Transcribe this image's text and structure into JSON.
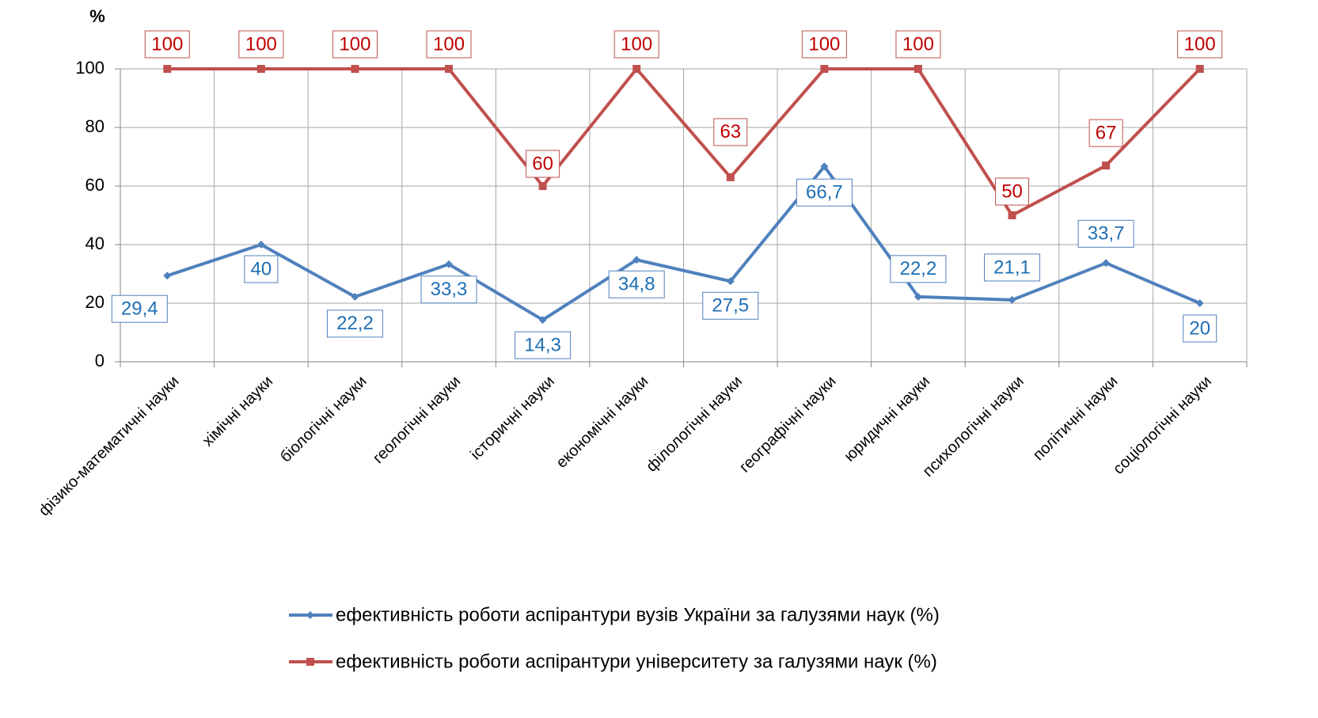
{
  "chart_data": {
    "type": "line",
    "y_axis_label": "%",
    "categories": [
      "фізико-математичні науки",
      "хімічні науки",
      "біологічні науки",
      "геологічні науки",
      "історичні науки",
      "економічні науки",
      "філологічні науки",
      "географічні науки",
      "юридичні науки",
      "психологічні науки",
      "політичні науки",
      "соціологічні науки"
    ],
    "series": [
      {
        "name": "ефективність роботи аспірантури вузів України за галузями наук (%)",
        "color": "#4f81bd",
        "label_color": "#1f6fb5",
        "values": [
          29.4,
          40,
          22.2,
          33.3,
          14.3,
          34.8,
          27.5,
          66.7,
          22.2,
          21.1,
          33.7,
          20
        ],
        "value_labels": [
          "29,4",
          "40",
          "22,2",
          "33,3",
          "14,3",
          "34,8",
          "27,5",
          "66,7",
          "22,2",
          "21,1",
          "33,7",
          "20"
        ]
      },
      {
        "name": "ефективність роботи аспірантури університету за галузями наук (%)",
        "color": "#c0504d",
        "label_color": "#c00000",
        "values": [
          100,
          100,
          100,
          100,
          60,
          100,
          63,
          100,
          100,
          50,
          67,
          100
        ],
        "value_labels": [
          "100",
          "100",
          "100",
          "100",
          "60",
          "100",
          "63",
          "100",
          "100",
          "50",
          "67",
          "100"
        ]
      }
    ],
    "ylim": [
      0,
      100
    ],
    "yticks": [
      0,
      20,
      40,
      60,
      80,
      100
    ],
    "grid": true,
    "legend": "bottom"
  }
}
